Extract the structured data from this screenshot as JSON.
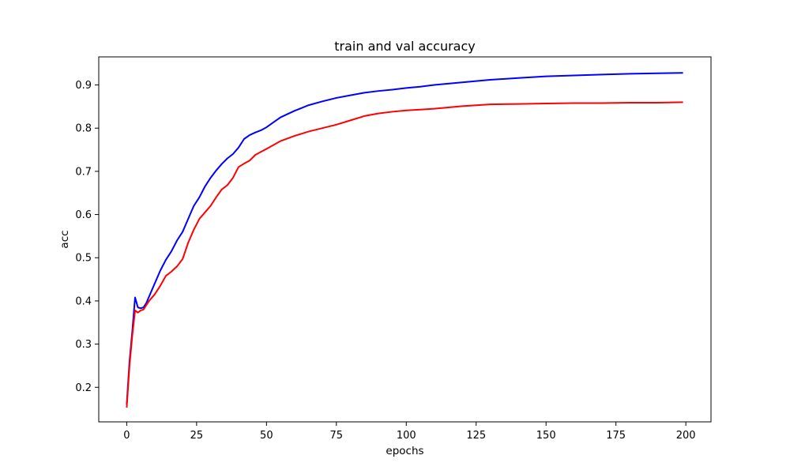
{
  "chart_data": {
    "type": "line",
    "title": "train and val accuracy",
    "xlabel": "epochs",
    "ylabel": "acc",
    "xlim": [
      -10,
      209
    ],
    "ylim": [
      0.12,
      0.965
    ],
    "xticks": [
      0,
      25,
      50,
      75,
      100,
      125,
      150,
      175,
      200
    ],
    "yticks": [
      0.2,
      0.3,
      0.4,
      0.5,
      0.6,
      0.7,
      0.8,
      0.9
    ],
    "ytick_labels": [
      "0.2",
      "0.3",
      "0.4",
      "0.5",
      "0.6",
      "0.7",
      "0.8",
      "0.9"
    ],
    "grid": false,
    "legend": false,
    "series": [
      {
        "color": "#0000ff",
        "x": [
          0,
          1,
          2,
          3,
          4,
          5,
          6,
          7,
          8,
          10,
          12,
          14,
          16,
          18,
          20,
          22,
          24,
          26,
          28,
          30,
          32,
          34,
          36,
          38,
          40,
          42,
          44,
          46,
          48,
          50,
          55,
          60,
          65,
          70,
          75,
          80,
          85,
          90,
          95,
          100,
          105,
          110,
          115,
          120,
          125,
          130,
          140,
          150,
          160,
          170,
          180,
          190,
          199
        ],
        "y": [
          0.16,
          0.26,
          0.33,
          0.408,
          0.385,
          0.383,
          0.385,
          0.395,
          0.41,
          0.44,
          0.47,
          0.495,
          0.515,
          0.54,
          0.56,
          0.59,
          0.62,
          0.64,
          0.665,
          0.685,
          0.702,
          0.717,
          0.73,
          0.74,
          0.755,
          0.775,
          0.784,
          0.79,
          0.795,
          0.802,
          0.825,
          0.84,
          0.853,
          0.862,
          0.87,
          0.876,
          0.882,
          0.886,
          0.889,
          0.893,
          0.896,
          0.9,
          0.903,
          0.906,
          0.909,
          0.912,
          0.916,
          0.92,
          0.922,
          0.924,
          0.926,
          0.927,
          0.928
        ]
      },
      {
        "color": "#ff0000",
        "x": [
          0,
          1,
          2,
          3,
          4,
          5,
          6,
          7,
          8,
          10,
          12,
          14,
          16,
          18,
          20,
          22,
          24,
          26,
          28,
          30,
          32,
          34,
          36,
          38,
          40,
          42,
          44,
          46,
          48,
          50,
          55,
          60,
          65,
          70,
          75,
          80,
          85,
          90,
          95,
          100,
          105,
          110,
          115,
          120,
          125,
          130,
          140,
          150,
          160,
          170,
          180,
          190,
          199
        ],
        "y": [
          0.153,
          0.25,
          0.32,
          0.378,
          0.373,
          0.378,
          0.38,
          0.39,
          0.4,
          0.415,
          0.435,
          0.458,
          0.468,
          0.48,
          0.497,
          0.535,
          0.565,
          0.59,
          0.605,
          0.62,
          0.64,
          0.658,
          0.668,
          0.685,
          0.71,
          0.718,
          0.725,
          0.738,
          0.745,
          0.752,
          0.77,
          0.782,
          0.792,
          0.8,
          0.808,
          0.818,
          0.828,
          0.834,
          0.838,
          0.841,
          0.843,
          0.845,
          0.848,
          0.851,
          0.853,
          0.855,
          0.856,
          0.857,
          0.858,
          0.858,
          0.859,
          0.859,
          0.86
        ]
      }
    ]
  }
}
